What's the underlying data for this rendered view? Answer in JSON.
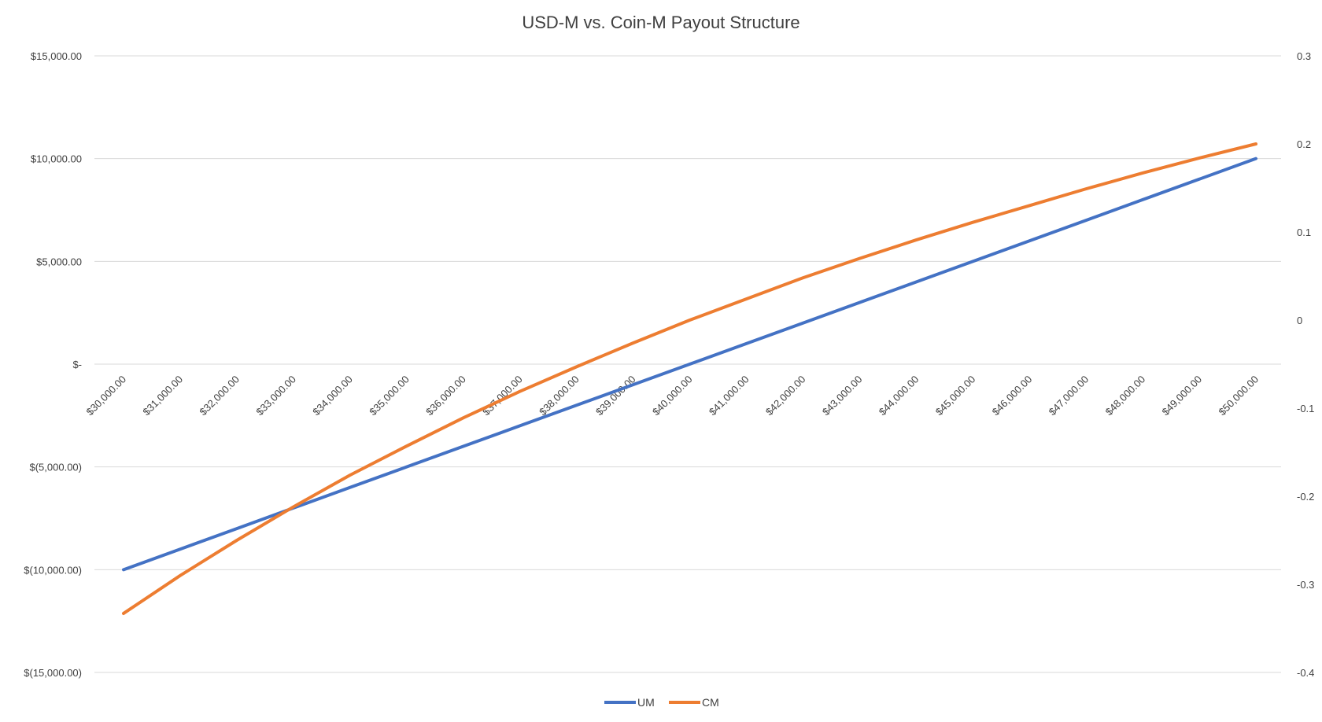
{
  "chart_data": {
    "type": "line",
    "title": "USD-M vs. Coin-M Payout Structure",
    "x": [
      30000,
      31000,
      32000,
      33000,
      34000,
      35000,
      36000,
      37000,
      38000,
      39000,
      40000,
      41000,
      42000,
      43000,
      44000,
      45000,
      46000,
      47000,
      48000,
      49000,
      50000
    ],
    "x_tick_labels": [
      "$30,000.00",
      "$31,000.00",
      "$32,000.00",
      "$33,000.00",
      "$34,000.00",
      "$35,000.00",
      "$36,000.00",
      "$37,000.00",
      "$38,000.00",
      "$39,000.00",
      "$40,000.00",
      "$41,000.00",
      "$42,000.00",
      "$43,000.00",
      "$44,000.00",
      "$45,000.00",
      "$46,000.00",
      "$47,000.00",
      "$48,000.00",
      "$49,000.00",
      "$50,000.00"
    ],
    "y_left": {
      "range": [
        -15000,
        15000
      ],
      "ticks": [
        15000,
        10000,
        5000,
        0,
        -5000,
        -10000,
        -15000
      ],
      "tick_labels": [
        "$15,000.00",
        "$10,000.00",
        "$5,000.00",
        "$-",
        "$(5,000.00)",
        "$(10,000.00)",
        "$(15,000.00)"
      ]
    },
    "y_right": {
      "range": [
        -0.4,
        0.3
      ],
      "ticks": [
        0.3,
        0.2,
        0.1,
        0,
        -0.1,
        -0.2,
        -0.3,
        -0.4
      ],
      "tick_labels": [
        "0.3",
        "0.2",
        "0.1",
        "0",
        "-0.1",
        "-0.2",
        "-0.3",
        "-0.4"
      ]
    },
    "grid": true,
    "legend_position": "bottom",
    "series": [
      {
        "name": "UM",
        "axis": "left",
        "color": "#4472c4",
        "values": [
          -10000,
          -9000,
          -8000,
          -7000,
          -6000,
          -5000,
          -4000,
          -3000,
          -2000,
          -1000,
          0,
          1000,
          2000,
          3000,
          4000,
          5000,
          6000,
          7000,
          8000,
          9000,
          10000
        ]
      },
      {
        "name": "CM",
        "axis": "right",
        "color": "#ed7d31",
        "values": [
          -0.333,
          -0.29,
          -0.25,
          -0.212,
          -0.176,
          -0.143,
          -0.111,
          -0.081,
          -0.053,
          -0.026,
          0.0,
          0.024,
          0.048,
          0.07,
          0.091,
          0.111,
          0.13,
          0.149,
          0.167,
          0.184,
          0.2
        ]
      }
    ]
  }
}
